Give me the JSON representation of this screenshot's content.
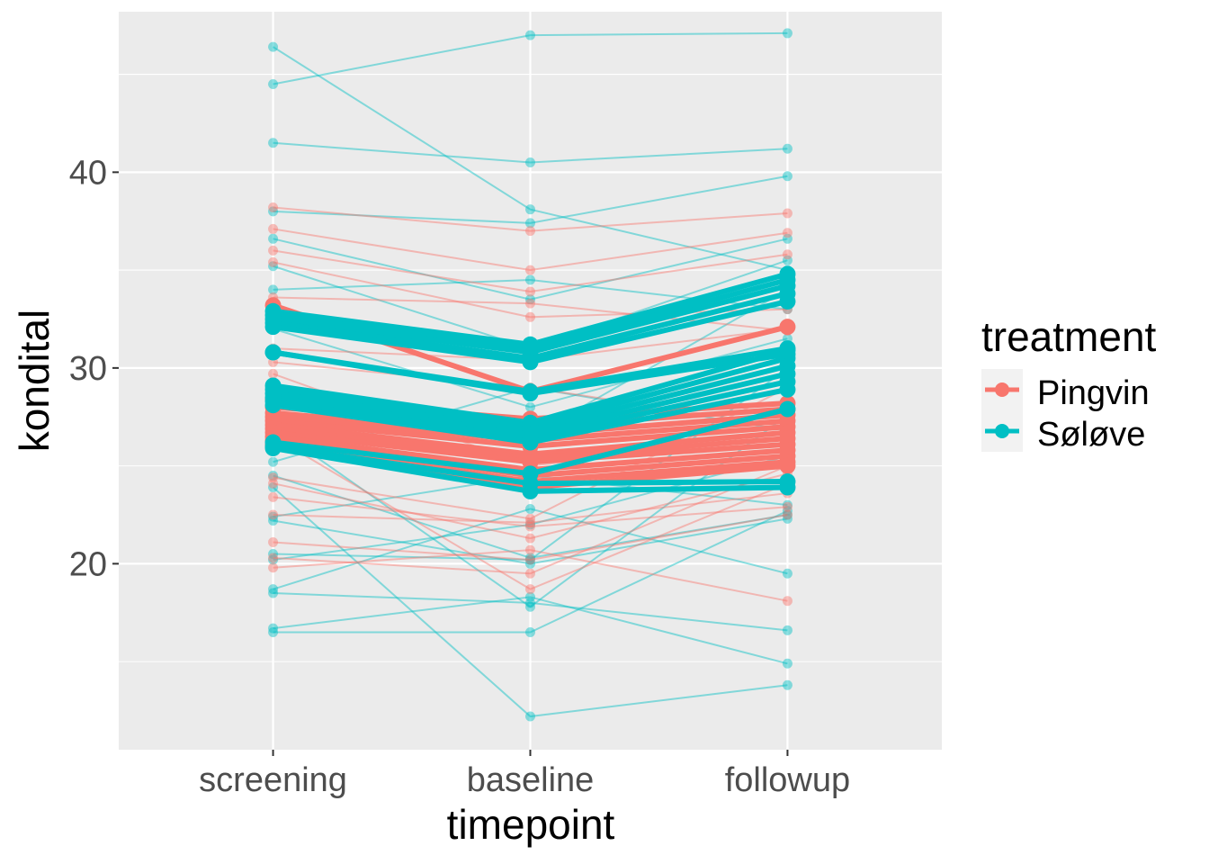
{
  "chart_data": {
    "type": "line",
    "title": "",
    "xlabel": "timepoint",
    "ylabel": "kondital",
    "categories": [
      "screening",
      "baseline",
      "followup"
    ],
    "ylim": [
      10.5,
      48.2
    ],
    "yticks": [
      20,
      30,
      40
    ],
    "grid": true,
    "legend": {
      "title": "treatment",
      "placement": "right",
      "entries": [
        {
          "name": "Pingvin",
          "color": "#F8766D"
        },
        {
          "name": "Søløve",
          "color": "#00BFC4"
        }
      ]
    },
    "colors": {
      "Pingvin": "#F8766D",
      "Søløve": "#00BFC4",
      "panel_background": "#EBEBEB",
      "grid": "#FFFFFF"
    },
    "individual_series": [
      {
        "group": "Søløve",
        "values": [
          46.4,
          38.1,
          35.0
        ]
      },
      {
        "group": "Søløve",
        "values": [
          44.5,
          47.0,
          47.1
        ]
      },
      {
        "group": "Søløve",
        "values": [
          41.5,
          40.5,
          41.2
        ]
      },
      {
        "group": "Søløve",
        "values": [
          38.0,
          37.4,
          39.8
        ]
      },
      {
        "group": "Søløve",
        "values": [
          36.6,
          33.5,
          36.6
        ]
      },
      {
        "group": "Søløve",
        "values": [
          35.2,
          31.0,
          35.5
        ]
      },
      {
        "group": "Søløve",
        "values": [
          34.0,
          34.5,
          33.0
        ]
      },
      {
        "group": "Søløve",
        "values": [
          32.0,
          28.0,
          31.5
        ]
      },
      {
        "group": "Søløve",
        "values": [
          29.0,
          26.5,
          34.0
        ]
      },
      {
        "group": "Søløve",
        "values": [
          25.2,
          29.0,
          26.8
        ]
      },
      {
        "group": "Søløve",
        "values": [
          24.5,
          20.3,
          22.5
        ]
      },
      {
        "group": "Søløve",
        "values": [
          22.4,
          24.5,
          23.0
        ]
      },
      {
        "group": "Søløve",
        "values": [
          22.2,
          20.0,
          22.3
        ]
      },
      {
        "group": "Søløve",
        "values": [
          20.5,
          20.2,
          30.0
        ]
      },
      {
        "group": "Søløve",
        "values": [
          20.2,
          22.0,
          25.5
        ]
      },
      {
        "group": "Søløve",
        "values": [
          18.7,
          22.8,
          19.5
        ]
      },
      {
        "group": "Søløve",
        "values": [
          18.5,
          18.0,
          16.6
        ]
      },
      {
        "group": "Søløve",
        "values": [
          16.7,
          18.3,
          14.9
        ]
      },
      {
        "group": "Søløve",
        "values": [
          16.5,
          16.5,
          22.7
        ]
      },
      {
        "group": "Søløve",
        "values": [
          23.9,
          12.2,
          13.8
        ]
      },
      {
        "group": "Søløve",
        "values": [
          27.0,
          17.8,
          27.6
        ]
      },
      {
        "group": "Pingvin",
        "values": [
          38.2,
          37.0,
          37.9
        ]
      },
      {
        "group": "Pingvin",
        "values": [
          37.1,
          35.0,
          36.9
        ]
      },
      {
        "group": "Pingvin",
        "values": [
          36.0,
          33.9,
          35.8
        ]
      },
      {
        "group": "Pingvin",
        "values": [
          35.4,
          32.6,
          33.0
        ]
      },
      {
        "group": "Pingvin",
        "values": [
          33.6,
          33.3,
          31.9
        ]
      },
      {
        "group": "Pingvin",
        "values": [
          31.0,
          30.4,
          32.0
        ]
      },
      {
        "group": "Pingvin",
        "values": [
          30.3,
          29.0,
          27.0
        ]
      },
      {
        "group": "Pingvin",
        "values": [
          24.4,
          22.3,
          29.0
        ]
      },
      {
        "group": "Pingvin",
        "values": [
          24.1,
          21.3,
          24.6
        ]
      },
      {
        "group": "Pingvin",
        "values": [
          23.4,
          21.9,
          22.9
        ]
      },
      {
        "group": "Pingvin",
        "values": [
          22.5,
          22.1,
          23.6
        ]
      },
      {
        "group": "Pingvin",
        "values": [
          21.1,
          20.2,
          22.5
        ]
      },
      {
        "group": "Pingvin",
        "values": [
          20.3,
          19.5,
          25.0
        ]
      },
      {
        "group": "Pingvin",
        "values": [
          19.8,
          20.7,
          18.1
        ]
      },
      {
        "group": "Pingvin",
        "values": [
          26.5,
          18.7,
          24.1
        ]
      },
      {
        "group": "Pingvin",
        "values": [
          29.7,
          25.0,
          26.5
        ]
      }
    ],
    "fitted_series": [
      {
        "group": "Søløve",
        "values": [
          32.9,
          31.2,
          34.8
        ]
      },
      {
        "group": "Søløve",
        "values": [
          32.7,
          31.0,
          34.5
        ]
      },
      {
        "group": "Søløve",
        "values": [
          32.5,
          30.8,
          34.2
        ]
      },
      {
        "group": "Søløve",
        "values": [
          32.3,
          30.5,
          33.8
        ]
      },
      {
        "group": "Søløve",
        "values": [
          32.1,
          30.3,
          33.4
        ]
      },
      {
        "group": "Søløve",
        "values": [
          30.8,
          28.8,
          31.0
        ]
      },
      {
        "group": "Søløve",
        "values": [
          30.8,
          28.7,
          30.7
        ]
      },
      {
        "group": "Søløve",
        "values": [
          29.1,
          27.2,
          30.9
        ]
      },
      {
        "group": "Søløve",
        "values": [
          28.9,
          27.0,
          30.5
        ]
      },
      {
        "group": "Søløve",
        "values": [
          28.7,
          26.8,
          30.1
        ]
      },
      {
        "group": "Søløve",
        "values": [
          28.5,
          26.6,
          29.7
        ]
      },
      {
        "group": "Søløve",
        "values": [
          28.3,
          26.4,
          29.3
        ]
      },
      {
        "group": "Søløve",
        "values": [
          28.1,
          26.2,
          28.9
        ]
      },
      {
        "group": "Søløve",
        "values": [
          26.2,
          24.6,
          27.9
        ]
      },
      {
        "group": "Søløve",
        "values": [
          26.0,
          24.1,
          24.2
        ]
      },
      {
        "group": "Søløve",
        "values": [
          25.9,
          23.7,
          23.9
        ]
      },
      {
        "group": "Pingvin",
        "values": [
          33.2,
          28.8,
          32.1
        ]
      },
      {
        "group": "Pingvin",
        "values": [
          28.4,
          27.4,
          28.2
        ]
      },
      {
        "group": "Pingvin",
        "values": [
          28.0,
          27.0,
          27.9
        ]
      },
      {
        "group": "Pingvin",
        "values": [
          27.7,
          26.6,
          27.6
        ]
      },
      {
        "group": "Pingvin",
        "values": [
          27.5,
          26.3,
          27.3
        ]
      },
      {
        "group": "Pingvin",
        "values": [
          27.3,
          26.0,
          27.0
        ]
      },
      {
        "group": "Pingvin",
        "values": [
          27.1,
          25.6,
          26.7
        ]
      },
      {
        "group": "Pingvin",
        "values": [
          26.9,
          25.4,
          26.4
        ]
      },
      {
        "group": "Pingvin",
        "values": [
          26.7,
          25.2,
          26.1
        ]
      },
      {
        "group": "Pingvin",
        "values": [
          26.5,
          24.8,
          25.8
        ]
      },
      {
        "group": "Pingvin",
        "values": [
          26.3,
          24.5,
          25.5
        ]
      },
      {
        "group": "Pingvin",
        "values": [
          26.1,
          24.2,
          25.2
        ]
      },
      {
        "group": "Pingvin",
        "values": [
          26.0,
          23.9,
          25.0
        ]
      }
    ]
  }
}
